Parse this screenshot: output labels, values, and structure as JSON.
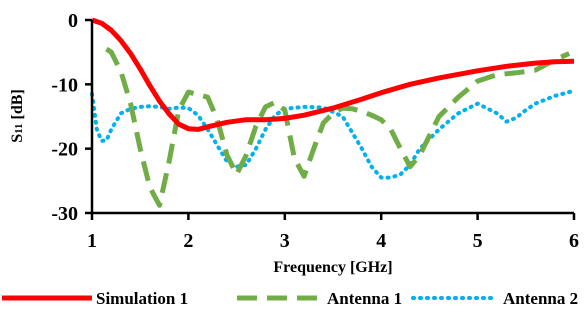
{
  "chart_data": {
    "type": "line",
    "title": "",
    "xlabel": "Frequency [GHz]",
    "ylabel_main": "S",
    "ylabel_sub": "11",
    "ylabel_unit": " [dB]",
    "xlim": [
      1,
      6
    ],
    "ylim": [
      -30,
      0
    ],
    "xticks": [
      1,
      2,
      3,
      4,
      5,
      6
    ],
    "yticks": [
      0,
      -10,
      -20,
      -30
    ],
    "grid": false,
    "legend_position": "bottom",
    "series": [
      {
        "name": "Simulation 1",
        "color": "#ff0000",
        "style": "solid",
        "x": [
          1.0,
          1.1,
          1.2,
          1.3,
          1.4,
          1.5,
          1.6,
          1.7,
          1.8,
          1.9,
          2.0,
          2.1,
          2.2,
          2.4,
          2.6,
          2.8,
          3.0,
          3.2,
          3.5,
          3.8,
          4.0,
          4.3,
          4.6,
          5.0,
          5.3,
          5.6,
          5.8,
          6.0
        ],
        "y": [
          0.0,
          -0.5,
          -1.6,
          -3.2,
          -5.2,
          -7.6,
          -10.2,
          -12.6,
          -14.6,
          -16.2,
          -16.9,
          -17.0,
          -16.6,
          -15.9,
          -15.5,
          -15.5,
          -15.3,
          -14.8,
          -13.7,
          -12.3,
          -11.3,
          -10.0,
          -9.0,
          -7.9,
          -7.2,
          -6.7,
          -6.5,
          -6.4
        ]
      },
      {
        "name": "Antenna 1",
        "color": "#70ad47",
        "style": "dashed",
        "x": [
          1.15,
          1.2,
          1.3,
          1.4,
          1.5,
          1.6,
          1.7,
          1.8,
          1.9,
          2.0,
          2.1,
          2.2,
          2.3,
          2.4,
          2.5,
          2.6,
          2.7,
          2.8,
          2.9,
          3.0,
          3.1,
          3.2,
          3.3,
          3.4,
          3.5,
          3.6,
          3.7,
          3.8,
          3.9,
          4.0,
          4.1,
          4.2,
          4.3,
          4.4,
          4.6,
          4.8,
          5.0,
          5.2,
          5.4,
          5.6,
          5.8,
          5.95
        ],
        "y": [
          -4.5,
          -5.0,
          -8.0,
          -13.0,
          -20.0,
          -26.0,
          -28.8,
          -22.0,
          -14.0,
          -11.2,
          -11.6,
          -12.0,
          -15.5,
          -21.0,
          -24.0,
          -21.0,
          -16.5,
          -13.5,
          -12.8,
          -14.0,
          -21.5,
          -24.3,
          -20.0,
          -16.0,
          -14.5,
          -13.7,
          -13.8,
          -14.2,
          -14.8,
          -15.5,
          -17.0,
          -20.0,
          -22.8,
          -21.0,
          -15.0,
          -12.0,
          -9.5,
          -8.5,
          -8.2,
          -7.8,
          -6.2,
          -5.2
        ]
      },
      {
        "name": "Antenna 2",
        "color": "#00b0f0",
        "style": "dotted",
        "x": [
          1.0,
          1.05,
          1.1,
          1.15,
          1.2,
          1.3,
          1.4,
          1.5,
          1.6,
          1.7,
          1.8,
          1.9,
          2.0,
          2.1,
          2.2,
          2.3,
          2.4,
          2.5,
          2.6,
          2.7,
          2.8,
          2.9,
          3.0,
          3.2,
          3.4,
          3.6,
          3.8,
          3.9,
          4.0,
          4.1,
          4.2,
          4.3,
          4.4,
          4.6,
          4.8,
          5.0,
          5.2,
          5.3,
          5.4,
          5.5,
          5.6,
          5.8,
          6.0
        ],
        "y": [
          -11.5,
          -17.0,
          -18.8,
          -18.7,
          -17.0,
          -14.5,
          -13.8,
          -13.5,
          -13.4,
          -13.5,
          -13.8,
          -13.6,
          -13.7,
          -14.8,
          -17.0,
          -19.5,
          -22.0,
          -22.8,
          -22.5,
          -20.0,
          -17.0,
          -14.8,
          -13.8,
          -13.5,
          -13.6,
          -15.0,
          -20.0,
          -22.8,
          -24.5,
          -24.5,
          -24.0,
          -22.5,
          -20.0,
          -17.0,
          -14.5,
          -13.0,
          -14.5,
          -15.8,
          -15.2,
          -14.0,
          -13.0,
          -11.8,
          -11.0
        ]
      }
    ]
  }
}
